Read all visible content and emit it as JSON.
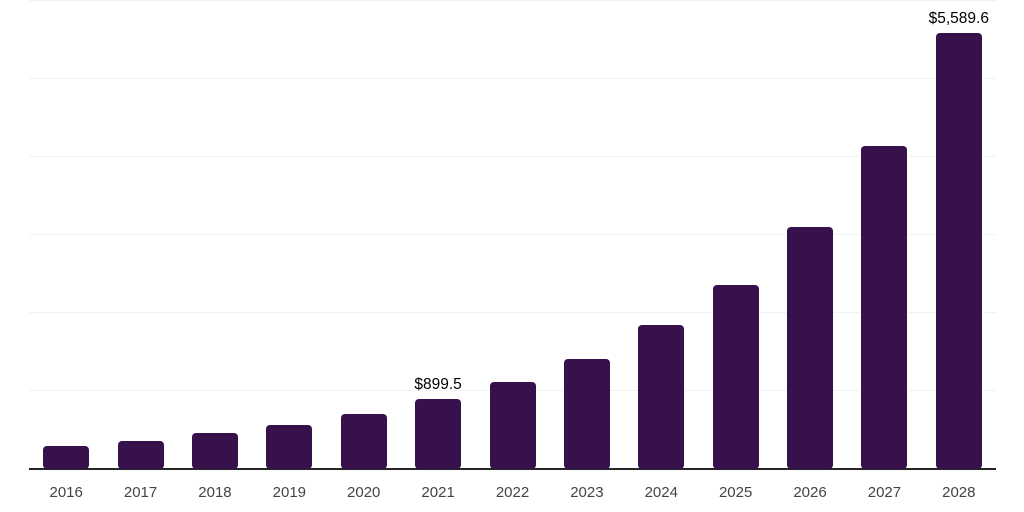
{
  "chart_data": {
    "type": "bar",
    "title": "",
    "xlabel": "",
    "ylabel": "",
    "categories": [
      "2016",
      "2017",
      "2018",
      "2019",
      "2020",
      "2021",
      "2022",
      "2023",
      "2024",
      "2025",
      "2026",
      "2027",
      "2028"
    ],
    "values": [
      300,
      365,
      460,
      560,
      705,
      899.5,
      1115,
      1415,
      1840,
      2365,
      3105,
      4145,
      5589.6
    ],
    "data_labels": {
      "2021": "$899.5",
      "2028": "$5,589.6"
    },
    "ylim": [
      0,
      6000
    ],
    "gridline_step": 1000,
    "grid": true,
    "legend": "none",
    "y_axis_labels_visible": false,
    "colors": {
      "bar": "#36114C",
      "axis_line": "#262626",
      "gridline": "#F2F2F2",
      "x_tick_label": "#444444",
      "data_label": "#000000",
      "background": "#FFFFFF"
    }
  }
}
